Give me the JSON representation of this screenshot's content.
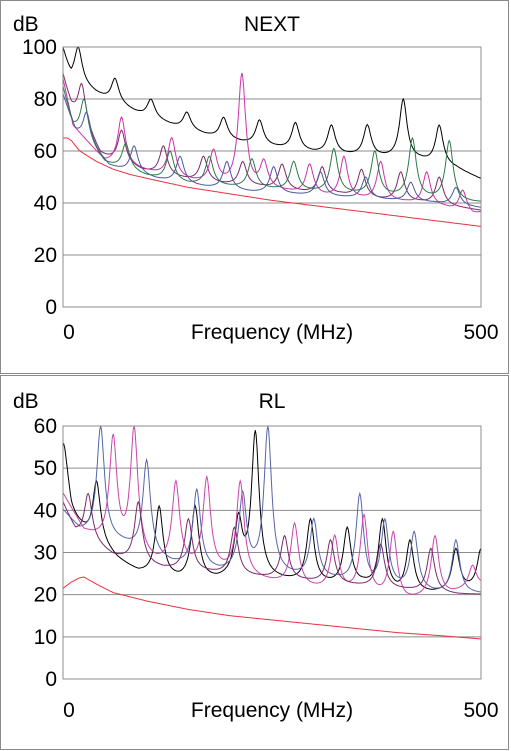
{
  "chart_data": [
    {
      "type": "line",
      "title": "NEXT",
      "ylabel": "dB",
      "xlabel": "Frequency (MHz)",
      "xlim": [
        0,
        500
      ],
      "ylim": [
        0,
        100
      ],
      "x_ticks": [
        "0",
        "500"
      ],
      "y_ticks": [
        "100",
        "80",
        "60",
        "40",
        "20",
        "0"
      ],
      "grid": "horizontal",
      "legend": "none",
      "series": [
        {
          "color": "#000000",
          "resonances": [
            [
              18,
              100
            ],
            [
              62,
              88
            ],
            [
              105,
              80
            ],
            [
              148,
              75
            ],
            [
              192,
              73
            ],
            [
              235,
              72
            ],
            [
              278,
              71
            ],
            [
              321,
              70
            ],
            [
              364,
              70
            ],
            [
              407,
              80
            ],
            [
              450,
              70
            ]
          ],
          "x": [
            0,
            10,
            40,
            85,
            128,
            170,
            213,
            257,
            300,
            343,
            386,
            428,
            470,
            500
          ],
          "values": [
            100,
            88,
            82,
            75,
            70,
            66,
            63,
            61,
            59,
            58,
            57,
            56,
            53,
            49
          ]
        },
        {
          "color": "#7a2a6a",
          "resonances": [
            [
              22,
              86
            ],
            [
              70,
              68
            ],
            [
              120,
              62
            ],
            [
              168,
              58
            ],
            [
              215,
              56
            ],
            [
              262,
              55
            ],
            [
              310,
              54
            ],
            [
              357,
              53
            ],
            [
              404,
              52
            ],
            [
              450,
              50
            ]
          ],
          "x": [
            0,
            10,
            45,
            95,
            145,
            192,
            238,
            286,
            333,
            380,
            427,
            475,
            500
          ],
          "values": [
            90,
            78,
            58,
            52,
            49,
            47,
            46,
            44,
            43,
            41,
            40,
            38,
            37
          ]
        },
        {
          "color": "#cc33aa",
          "resonances": [
            [
              70,
              73
            ],
            [
              130,
              65
            ],
            [
              180,
              60
            ],
            [
              214,
              90
            ],
            [
              240,
              57
            ],
            [
              295,
              55
            ],
            [
              336,
              58
            ],
            [
              380,
              56
            ],
            [
              435,
              52
            ],
            [
              478,
              45
            ]
          ],
          "x": [
            0,
            12,
            50,
            100,
            155,
            205,
            268,
            315,
            358,
            410,
            456,
            490,
            500
          ],
          "values": [
            88,
            70,
            56,
            52,
            48,
            46,
            44,
            42,
            41,
            40,
            38,
            35,
            36
          ]
        },
        {
          "color": "#2e7a4a",
          "resonances": [
            [
              25,
              80
            ],
            [
              75,
              63
            ],
            [
              128,
              60
            ],
            [
              175,
              58
            ],
            [
              226,
              57
            ],
            [
              276,
              56
            ],
            [
              324,
              61
            ],
            [
              373,
              60
            ],
            [
              418,
              65
            ],
            [
              462,
              64
            ]
          ],
          "x": [
            0,
            12,
            50,
            100,
            150,
            200,
            250,
            300,
            350,
            396,
            440,
            480,
            500
          ],
          "values": [
            85,
            70,
            55,
            50,
            47,
            46,
            45,
            44,
            43,
            42,
            41,
            40,
            40
          ]
        },
        {
          "color": "#4a5a9a",
          "resonances": [
            [
              28,
              75
            ],
            [
              85,
              62
            ],
            [
              140,
              58
            ],
            [
              196,
              56
            ],
            [
              252,
              54
            ],
            [
              308,
              52
            ],
            [
              362,
              50
            ],
            [
              416,
              48
            ],
            [
              470,
              46
            ]
          ],
          "x": [
            0,
            15,
            55,
            112,
            168,
            224,
            280,
            335,
            390,
            443,
            500
          ],
          "values": [
            82,
            68,
            54,
            49,
            46,
            44,
            43,
            42,
            41,
            40,
            38
          ]
        },
        {
          "color": "#e8303c",
          "x": [
            0,
            5,
            10,
            20,
            40,
            60,
            80,
            100,
            150,
            200,
            250,
            300,
            350,
            400,
            450,
            500
          ],
          "values": [
            65,
            65,
            64,
            60,
            56,
            53,
            51,
            49.5,
            46,
            43.5,
            41,
            39,
            37,
            35,
            33,
            31
          ]
        }
      ]
    },
    {
      "type": "line",
      "title": "RL",
      "ylabel": "dB",
      "xlabel": "Frequency (MHz)",
      "xlim": [
        0,
        500
      ],
      "ylim": [
        0,
        60
      ],
      "x_ticks": [
        "0",
        "500"
      ],
      "y_ticks": [
        "60",
        "50",
        "40",
        "30",
        "20",
        "10",
        "0"
      ],
      "grid": "horizontal",
      "legend": "none",
      "series": [
        {
          "color": "#000000",
          "resonances": [
            [
              0,
              56
            ],
            [
              40,
              47
            ],
            [
              115,
              41
            ],
            [
              158,
              41
            ],
            [
              210,
              38
            ],
            [
              230,
              59
            ],
            [
              296,
              38
            ],
            [
              340,
              36
            ],
            [
              382,
              38
            ],
            [
              415,
              33
            ],
            [
              470,
              31
            ],
            [
              500,
              31
            ]
          ],
          "x": [
            0,
            10,
            30,
            65,
            90,
            140,
            185,
            220,
            265,
            320,
            360,
            400,
            440,
            490
          ],
          "values": [
            48,
            38,
            34,
            28,
            25,
            23,
            23,
            24,
            23,
            22,
            22,
            20,
            20,
            21
          ]
        },
        {
          "color": "#5566aa",
          "resonances": [
            [
              45,
              60
            ],
            [
              100,
              52
            ],
            [
              160,
              45
            ],
            [
              215,
              44
            ],
            [
              245,
              60
            ],
            [
              300,
              38
            ],
            [
              355,
              44
            ],
            [
              385,
              38
            ],
            [
              420,
              35
            ],
            [
              470,
              33
            ]
          ],
          "x": [
            0,
            20,
            70,
            130,
            188,
            230,
            272,
            328,
            370,
            402,
            445,
            490
          ],
          "values": [
            40,
            35,
            32,
            27,
            25,
            25,
            24,
            23,
            21,
            21,
            20,
            20
          ]
        },
        {
          "color": "#cc44aa",
          "resonances": [
            [
              60,
              58
            ],
            [
              85,
              60
            ],
            [
              135,
              47
            ],
            [
              172,
              48
            ],
            [
              212,
              47
            ],
            [
              277,
              37
            ],
            [
              325,
              34
            ],
            [
              360,
              39
            ],
            [
              395,
              35
            ],
            [
              445,
              34
            ],
            [
              490,
              27
            ]
          ],
          "x": [
            0,
            25,
            72,
            110,
            153,
            192,
            240,
            300,
            342,
            378,
            410,
            465,
            500
          ],
          "values": [
            44,
            35,
            30,
            27,
            26,
            25,
            23,
            21,
            20,
            19,
            18,
            20,
            22
          ]
        },
        {
          "color": "#7a2a6a",
          "resonances": [
            [
              30,
              44
            ],
            [
              90,
              42
            ],
            [
              150,
              38
            ],
            [
              205,
              36
            ],
            [
              265,
              34
            ],
            [
              320,
              33
            ],
            [
              380,
              32
            ],
            [
              440,
              31
            ]
          ],
          "x": [
            0,
            15,
            60,
            120,
            178,
            235,
            292,
            350,
            410,
            470,
            500
          ],
          "values": [
            42,
            35,
            29,
            26,
            25,
            24,
            23,
            22,
            21,
            20,
            20
          ]
        },
        {
          "color": "#e8303c",
          "x": [
            0,
            10,
            20,
            25,
            40,
            60,
            80,
            100,
            150,
            200,
            250,
            300,
            350,
            400,
            450,
            500
          ],
          "values": [
            21.5,
            23,
            24,
            24.2,
            22.5,
            20.5,
            19.5,
            18.5,
            16.5,
            15,
            14,
            13,
            12,
            11,
            10.3,
            9.5
          ]
        }
      ]
    }
  ]
}
